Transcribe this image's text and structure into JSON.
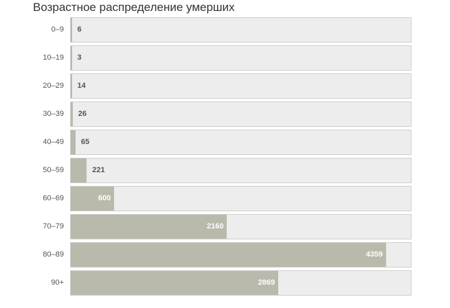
{
  "chart_data": {
    "type": "bar",
    "orientation": "horizontal",
    "title": "Возрастное распределение умерших",
    "categories": [
      "0–9",
      "10–19",
      "20–29",
      "30–39",
      "40–49",
      "50–59",
      "60–69",
      "70–79",
      "80–89",
      "90+"
    ],
    "values": [
      6,
      3,
      14,
      26,
      65,
      221,
      600,
      2160,
      4359,
      2869
    ],
    "value_labels": [
      "6",
      "3",
      "14",
      "26",
      "65",
      "221",
      "600",
      "2160",
      "4359",
      "2869"
    ],
    "xlim": [
      0,
      4700
    ],
    "grid": false,
    "legend": "none",
    "colors": {
      "bar": "#b9b9ac",
      "track": "#ededed",
      "track_border": "#cfcfcf"
    }
  }
}
